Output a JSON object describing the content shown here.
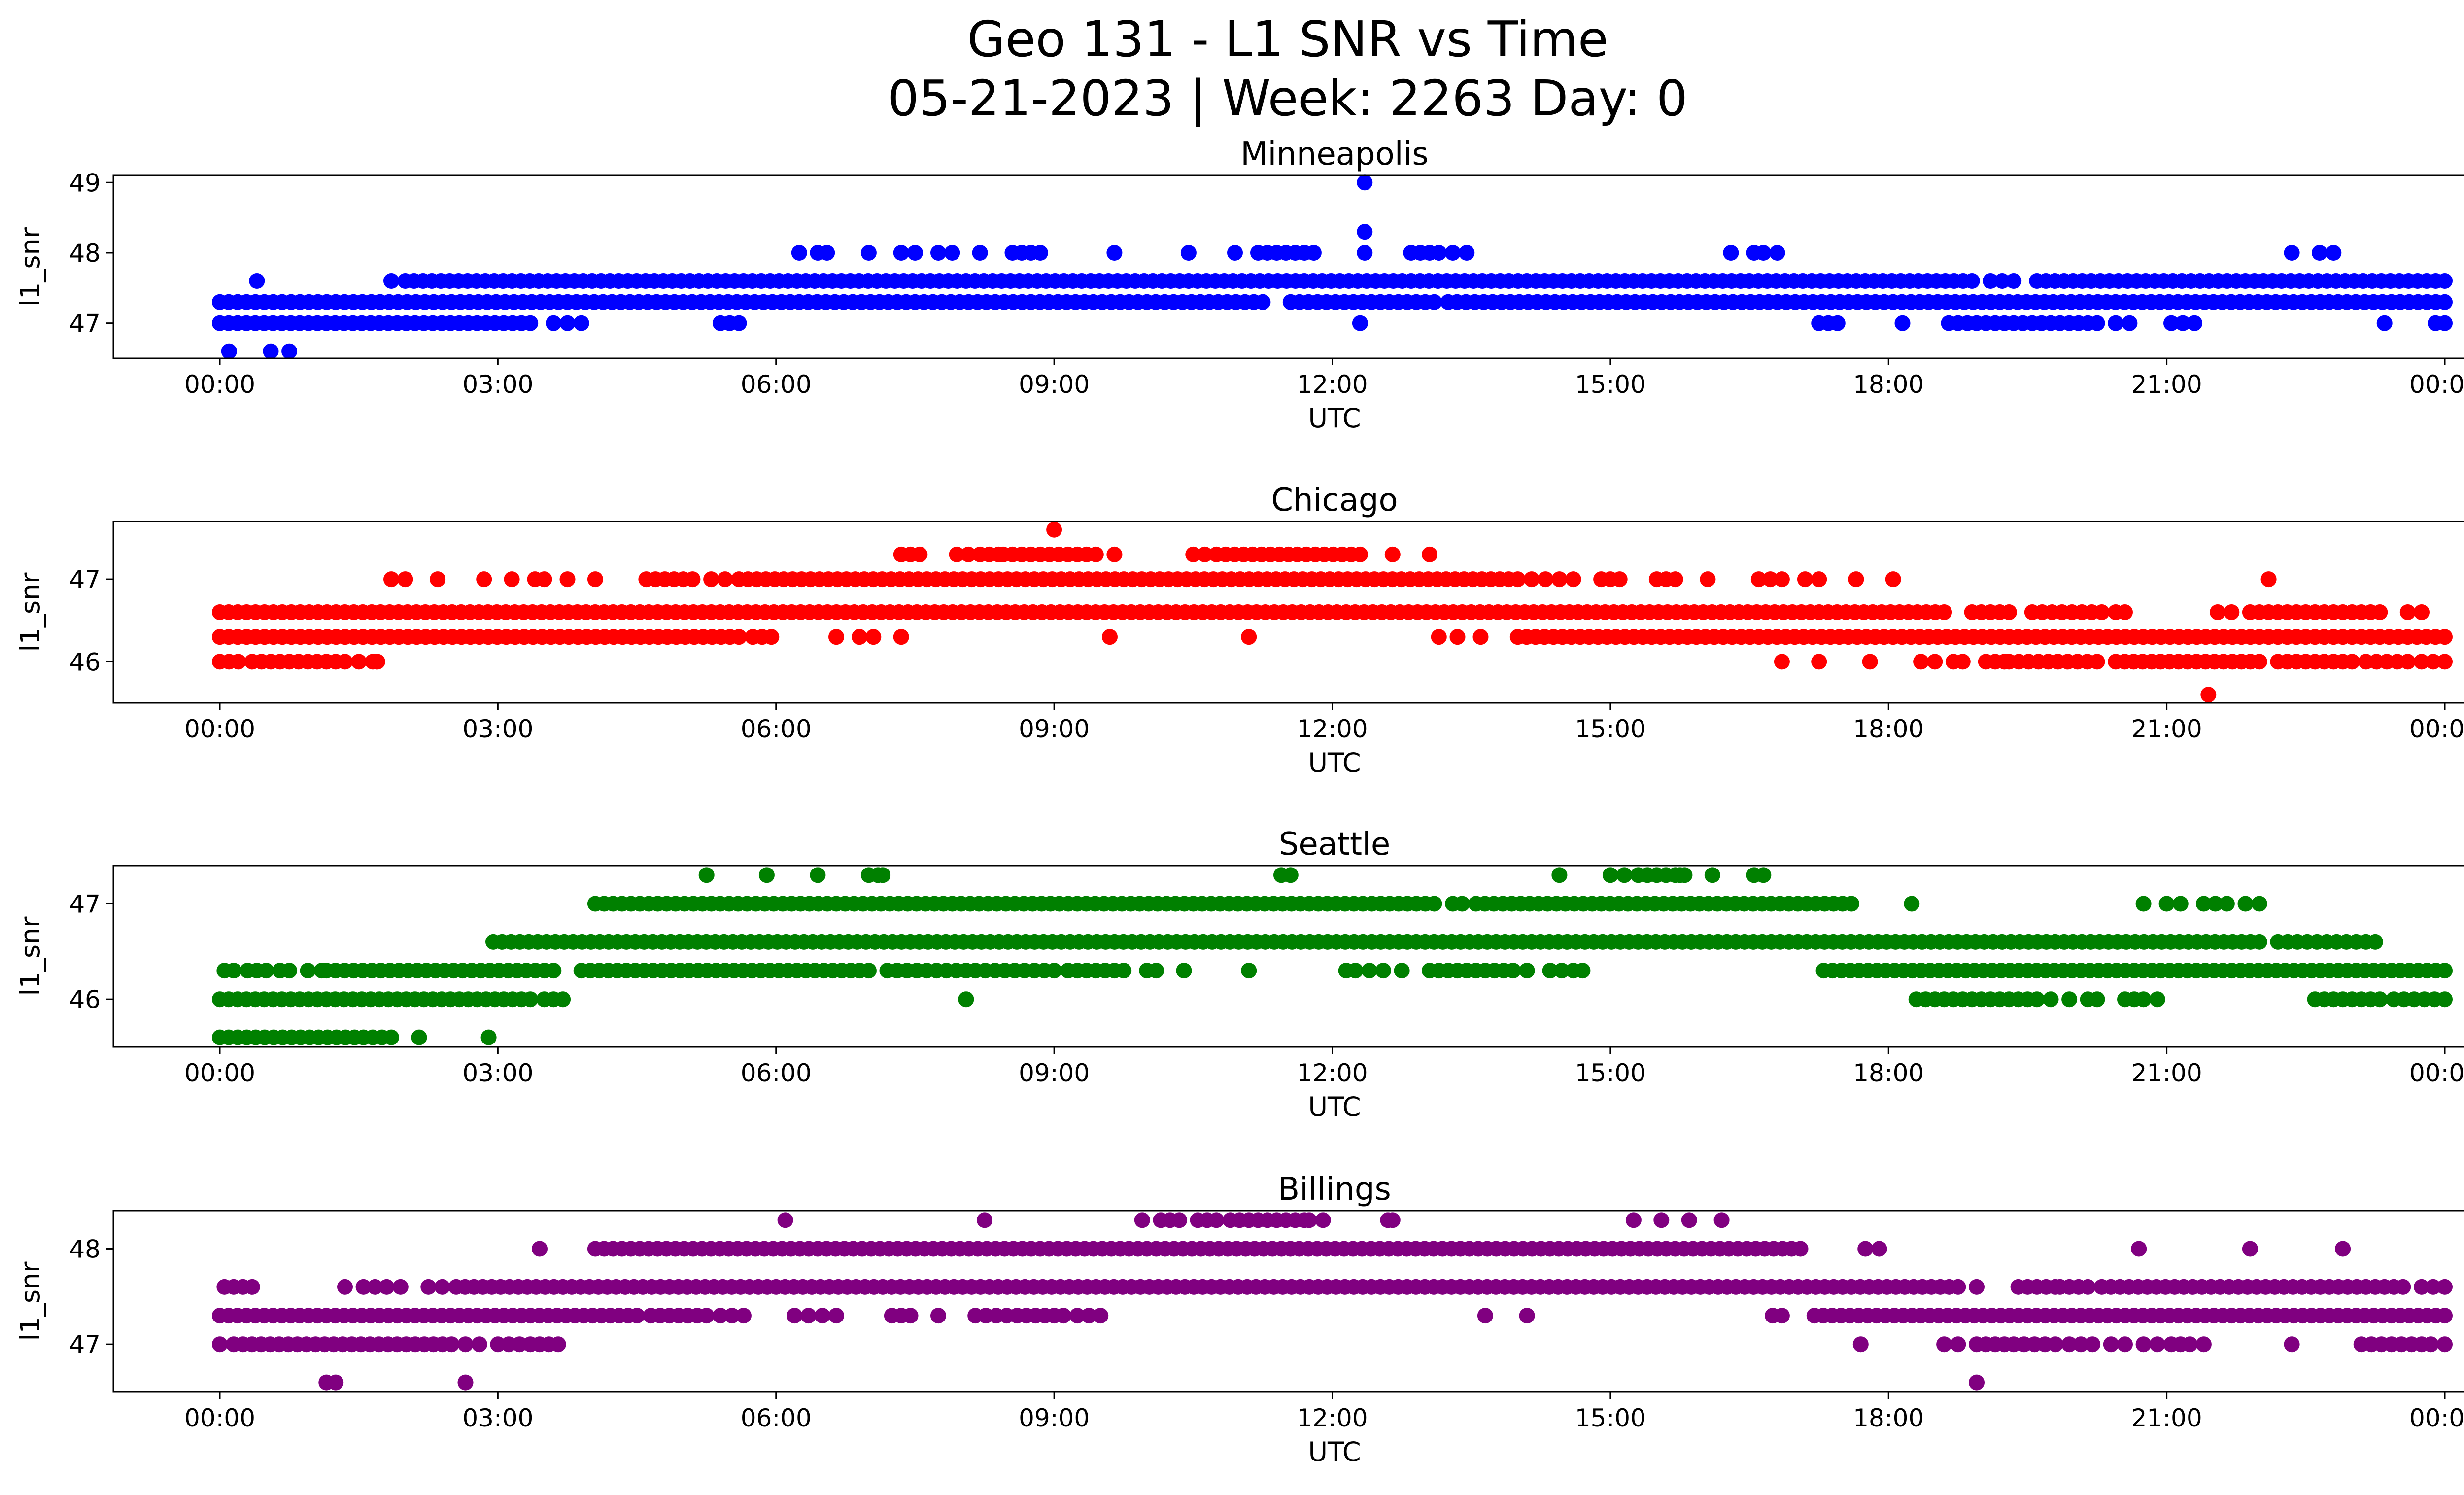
{
  "figure": {
    "title_line1": "Geo 131 - L1 SNR vs Time",
    "title_line2": "05-21-2023 | Week: 2263 Day: 0"
  },
  "chart_data": [
    {
      "type": "scatter",
      "title": "Minneapolis",
      "xlabel": "UTC",
      "ylabel": "l1_snr",
      "color": "#0000ff",
      "xlim": [
        "00:00",
        "24:00"
      ],
      "ylim": [
        46.5,
        49.1
      ],
      "x_ticks": [
        "00:00",
        "03:00",
        "06:00",
        "09:00",
        "12:00",
        "15:00",
        "18:00",
        "21:00",
        "00:00"
      ],
      "y_ticks": [
        47,
        48,
        49
      ],
      "series": [
        {
          "level": 47.3,
          "segments": [
            [
              0.0,
              11.25
            ],
            [
              11.55,
              13.1
            ],
            [
              13.25,
              24.0
            ]
          ]
        },
        {
          "level": 47.6,
          "segments": [
            [
              0.4,
              0.45
            ],
            [
              1.85,
              1.9
            ],
            [
              2.0,
              18.9
            ],
            [
              19.1,
              19.35
            ],
            [
              19.6,
              24.0
            ]
          ]
        },
        {
          "level": 47.0,
          "segments": [
            [
              0.0,
              3.35
            ],
            [
              3.6,
              3.65
            ],
            [
              3.75,
              3.9
            ],
            [
              5.4,
              5.6
            ],
            [
              12.3,
              12.35
            ],
            [
              17.25,
              17.45
            ],
            [
              18.15,
              18.2
            ],
            [
              18.65,
              20.25
            ],
            [
              20.45,
              20.6
            ],
            [
              21.05,
              21.3
            ],
            [
              23.35,
              23.4
            ],
            [
              23.9,
              24.0
            ]
          ]
        },
        {
          "level": 48.0,
          "points": [
            6.25,
            6.45,
            6.55,
            7.0,
            7.35,
            7.5,
            7.75,
            7.9,
            8.2,
            8.55,
            8.65,
            8.75,
            8.85,
            9.65,
            10.45,
            10.95,
            11.2,
            11.3,
            11.4,
            11.5,
            11.6,
            11.7,
            11.8,
            12.35,
            12.85,
            12.95,
            13.05,
            13.15,
            13.3,
            13.45,
            16.3,
            16.55,
            16.65,
            16.8,
            22.35,
            22.65,
            22.8
          ]
        },
        {
          "level": 48.3,
          "points": [
            12.35
          ]
        },
        {
          "level": 49.0,
          "points": [
            12.35
          ]
        },
        {
          "level": 46.6,
          "points": [
            0.1,
            0.55,
            0.75
          ]
        }
      ]
    },
    {
      "type": "scatter",
      "title": "Chicago",
      "xlabel": "UTC",
      "ylabel": "l1_snr",
      "color": "#ff0000",
      "xlim": [
        "00:00",
        "24:00"
      ],
      "ylim": [
        45.5,
        47.7
      ],
      "x_ticks": [
        "00:00",
        "03:00",
        "06:00",
        "09:00",
        "12:00",
        "15:00",
        "18:00",
        "21:00",
        "00:00"
      ],
      "y_ticks": [
        46,
        47
      ],
      "series": [
        {
          "level": 46.6,
          "segments": [
            [
              0.0,
              12.05
            ],
            [
              12.15,
              18.6
            ],
            [
              18.9,
              19.3
            ],
            [
              19.55,
              20.3
            ],
            [
              20.45,
              20.55
            ],
            [
              21.55,
              21.7
            ],
            [
              21.9,
              22.8
            ],
            [
              22.9,
              23.3
            ],
            [
              23.6,
              23.75
            ]
          ]
        },
        {
          "level": 46.3,
          "segments": [
            [
              0.0,
              5.6
            ],
            [
              5.75,
              5.95
            ],
            [
              14.0,
              22.0
            ],
            [
              22.1,
              24.0
            ]
          ]
        },
        {
          "level": 46.0,
          "segments": [
            [
              0.0,
              0.2
            ],
            [
              0.35,
              0.55
            ],
            [
              0.65,
              1.35
            ],
            [
              1.5,
              1.65
            ],
            [
              1.7,
              1.75
            ],
            [
              18.7,
              18.8
            ],
            [
              19.05,
              19.25
            ],
            [
              19.3,
              20.25
            ],
            [
              20.45,
              22.0
            ],
            [
              22.2,
              23.0
            ],
            [
              23.15,
              23.6
            ],
            [
              23.75,
              24.0
            ]
          ]
        },
        {
          "level": 47.0,
          "segments": [
            [
              1.85,
              2.0
            ],
            [
              2.35,
              2.4
            ],
            [
              2.85,
              2.9
            ],
            [
              3.15,
              3.2
            ],
            [
              3.4,
              3.5
            ],
            [
              3.75,
              3.8
            ],
            [
              4.05,
              4.1
            ],
            [
              4.6,
              4.8
            ],
            [
              4.9,
              5.1
            ],
            [
              5.3,
              5.45
            ],
            [
              5.6,
              14.0
            ],
            [
              14.15,
              14.3
            ],
            [
              14.45,
              14.6
            ],
            [
              14.9,
              15.1
            ],
            [
              15.5,
              15.7
            ],
            [
              16.05,
              16.1
            ],
            [
              16.6,
              16.85
            ],
            [
              17.1,
              17.25
            ],
            [
              17.65,
              17.7
            ],
            [
              18.05,
              18.1
            ]
          ]
        },
        {
          "level": 47.3,
          "segments": [
            [
              7.35,
              7.55
            ],
            [
              7.95,
              8.2
            ],
            [
              8.3,
              8.4
            ],
            [
              8.45,
              9.25
            ],
            [
              9.35,
              9.45
            ],
            [
              9.65,
              9.7
            ],
            [
              10.5,
              10.75
            ],
            [
              10.85,
              12.3
            ],
            [
              12.65,
              12.7
            ],
            [
              13.05,
              13.1
            ]
          ]
        },
        {
          "level": 46.3,
          "points": [
            6.65,
            6.9,
            7.05,
            7.35,
            9.6,
            11.1,
            13.15,
            13.35,
            13.6
          ]
        },
        {
          "level": 47.6,
          "points": [
            9.0
          ]
        },
        {
          "level": 47.0,
          "points": [
            22.1
          ]
        },
        {
          "level": 46.0,
          "points": [
            16.85,
            17.25,
            17.8,
            18.35,
            18.5
          ]
        },
        {
          "level": 45.6,
          "points": [
            21.45
          ]
        }
      ]
    },
    {
      "type": "scatter",
      "title": "Seattle",
      "xlabel": "UTC",
      "ylabel": "l1_snr",
      "color": "#008000",
      "xlim": [
        "00:00",
        "24:00"
      ],
      "ylim": [
        45.5,
        47.4
      ],
      "x_ticks": [
        "00:00",
        "03:00",
        "06:00",
        "09:00",
        "12:00",
        "15:00",
        "18:00",
        "21:00",
        "00:00"
      ],
      "y_ticks": [
        46,
        47
      ],
      "series": [
        {
          "level": 46.3,
          "segments": [
            [
              0.05,
              0.15
            ],
            [
              0.3,
              0.5
            ],
            [
              0.65,
              0.75
            ],
            [
              0.95,
              1.1
            ],
            [
              1.15,
              3.6
            ],
            [
              3.9,
              7.0
            ],
            [
              7.2,
              8.05
            ],
            [
              8.15,
              9.0
            ],
            [
              9.15,
              9.75
            ],
            [
              10.0,
              10.1
            ],
            [
              10.4,
              10.45
            ],
            [
              11.1,
              11.15
            ],
            [
              12.15,
              12.25
            ],
            [
              12.4,
              12.55
            ],
            [
              12.75,
              12.8
            ],
            [
              13.05,
              13.95
            ],
            [
              14.1,
              14.15
            ],
            [
              14.35,
              14.6
            ],
            [
              14.7,
              14.75
            ],
            [
              17.3,
              24.0
            ]
          ]
        },
        {
          "level": 46.0,
          "segments": [
            [
              0.0,
              3.35
            ],
            [
              3.5,
              3.6
            ],
            [
              3.7,
              3.75
            ],
            [
              18.3,
              19.5
            ],
            [
              19.6,
              19.75
            ],
            [
              19.95,
              20.0
            ],
            [
              20.15,
              20.25
            ],
            [
              20.55,
              20.75
            ],
            [
              20.9,
              20.95
            ],
            [
              22.6,
              23.3
            ],
            [
              23.45,
              24.0
            ]
          ]
        },
        {
          "level": 45.6,
          "segments": [
            [
              0.0,
              1.55
            ],
            [
              1.65,
              1.85
            ]
          ]
        },
        {
          "level": 46.6,
          "segments": [
            [
              2.95,
              22.0
            ],
            [
              22.2,
              23.15
            ],
            [
              23.25,
              23.3
            ]
          ]
        },
        {
          "level": 47.0,
          "segments": [
            [
              4.05,
              13.1
            ],
            [
              13.3,
              13.4
            ],
            [
              13.55,
              17.6
            ],
            [
              18.25,
              18.3
            ],
            [
              20.75,
              20.8
            ],
            [
              21.0,
              21.15
            ],
            [
              21.4,
              21.65
            ],
            [
              21.85,
              22.0
            ]
          ]
        },
        {
          "level": 47.3,
          "points": [
            5.25,
            5.9,
            6.45,
            7.0,
            7.1,
            7.15,
            11.45,
            11.55,
            14.45,
            15.0,
            15.15,
            15.3,
            15.4,
            15.5,
            15.6,
            15.7,
            15.75,
            15.8,
            16.1,
            16.55,
            16.65
          ]
        },
        {
          "level": 46.0,
          "points": [
            8.05
          ]
        },
        {
          "level": 45.6,
          "points": [
            2.15,
            2.9
          ]
        }
      ]
    },
    {
      "type": "scatter",
      "title": "Billings",
      "xlabel": "UTC",
      "ylabel": "l1_snr",
      "color": "#800080",
      "xlim": [
        "00:00",
        "24:00"
      ],
      "ylim": [
        46.5,
        48.4
      ],
      "x_ticks": [
        "00:00",
        "03:00",
        "06:00",
        "09:00",
        "12:00",
        "15:00",
        "18:00",
        "21:00",
        "00:00"
      ],
      "y_ticks": [
        47,
        48
      ],
      "series": [
        {
          "level": 47.3,
          "segments": [
            [
              0.0,
              4.5
            ],
            [
              4.65,
              5.25
            ],
            [
              5.4,
              5.65
            ],
            [
              6.2,
              6.35
            ],
            [
              6.5,
              6.65
            ],
            [
              7.25,
              7.45
            ],
            [
              7.75,
              7.8
            ],
            [
              8.15,
              8.6
            ],
            [
              8.7,
              9.1
            ],
            [
              9.25,
              9.5
            ],
            [
              16.75,
              16.85
            ],
            [
              17.2,
              24.0
            ]
          ]
        },
        {
          "level": 47.6,
          "segments": [
            [
              0.05,
              0.35
            ],
            [
              1.35,
              1.4
            ],
            [
              1.55,
              1.8
            ],
            [
              1.95,
              2.0
            ],
            [
              2.25,
              2.4
            ],
            [
              2.55,
              18.75
            ],
            [
              18.95,
              19.0
            ],
            [
              19.4,
              19.8
            ],
            [
              19.85,
              20.15
            ],
            [
              20.3,
              23.05
            ],
            [
              23.15,
              23.55
            ],
            [
              23.75,
              24.0
            ]
          ]
        },
        {
          "level": 47.0,
          "segments": [
            [
              0.0,
              0.15
            ],
            [
              0.25,
              2.5
            ],
            [
              2.65,
              2.8
            ],
            [
              3.0,
              3.35
            ],
            [
              3.45,
              3.55
            ],
            [
              3.65,
              3.7
            ],
            [
              18.6,
              18.75
            ],
            [
              18.95,
              19.25
            ],
            [
              19.35,
              19.8
            ],
            [
              19.95,
              20.2
            ],
            [
              20.4,
              20.55
            ],
            [
              20.75,
              20.9
            ],
            [
              21.05,
              21.15
            ],
            [
              21.25,
              21.4
            ],
            [
              23.1,
              23.75
            ],
            [
              23.85,
              24.0
            ]
          ]
        },
        {
          "level": 48.0,
          "segments": [
            [
              4.05,
              10.0
            ],
            [
              10.1,
              17.05
            ],
            [
              17.75,
              17.9
            ]
          ]
        },
        {
          "level": 48.3,
          "points": [
            6.1,
            8.25,
            9.95,
            10.15,
            10.25,
            10.35,
            10.55,
            10.65,
            10.75,
            10.9,
            11.0,
            11.1,
            11.2,
            11.3,
            11.4,
            11.5,
            11.6,
            11.7,
            11.75,
            11.9,
            12.6,
            12.65,
            15.25,
            15.55,
            15.85,
            16.2
          ]
        },
        {
          "level": 47.3,
          "points": [
            13.65,
            14.1
          ]
        },
        {
          "level": 48.0,
          "points": [
            3.45,
            20.7,
            21.9,
            22.9
          ]
        },
        {
          "level": 47.0,
          "points": [
            17.7,
            22.35
          ]
        },
        {
          "level": 46.6,
          "points": [
            1.15,
            1.25,
            2.65,
            18.95
          ]
        }
      ]
    }
  ]
}
